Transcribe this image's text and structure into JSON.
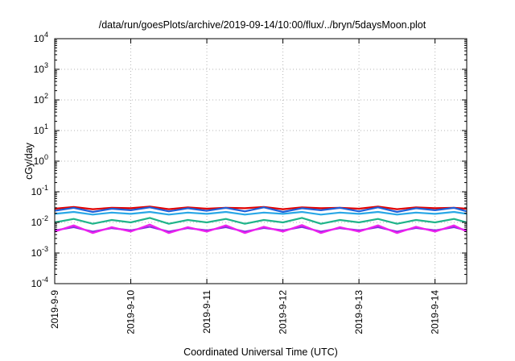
{
  "chart_data": {
    "type": "line",
    "title": "/data/run/goesPlots/archive/2019-09-14/10:00/flux/../bryn/5daysMoon.plot",
    "xlabel": "Coordinated Universal Time (UTC)",
    "ylabel": "cGy/day",
    "yscale": "log",
    "ylim": [
      0.0001,
      10000
    ],
    "xlim": [
      "2019-09-09T00:00",
      "2019-09-14T10:00"
    ],
    "grid": true,
    "legend": "none",
    "y_ticks": [
      {
        "base": "10",
        "exp": "-4"
      },
      {
        "base": "10",
        "exp": "-3"
      },
      {
        "base": "10",
        "exp": "-2"
      },
      {
        "base": "10",
        "exp": "-1"
      },
      {
        "base": "10",
        "exp": "0"
      },
      {
        "base": "10",
        "exp": "1"
      },
      {
        "base": "10",
        "exp": "2"
      },
      {
        "base": "10",
        "exp": "3"
      },
      {
        "base": "10",
        "exp": "4"
      }
    ],
    "x_ticks": [
      "2019-9-9",
      "2019-9-10",
      "2019-9-11",
      "2019-9-12",
      "2019-9-13",
      "2019-9-14"
    ],
    "x": [
      "2019-09-09T00:00",
      "2019-09-09T06:00",
      "2019-09-09T12:00",
      "2019-09-09T18:00",
      "2019-09-10T00:00",
      "2019-09-10T06:00",
      "2019-09-10T12:00",
      "2019-09-10T18:00",
      "2019-09-11T00:00",
      "2019-09-11T06:00",
      "2019-09-11T12:00",
      "2019-09-11T18:00",
      "2019-09-12T00:00",
      "2019-09-12T06:00",
      "2019-09-12T12:00",
      "2019-09-12T18:00",
      "2019-09-13T00:00",
      "2019-09-13T06:00",
      "2019-09-13T12:00",
      "2019-09-13T18:00",
      "2019-09-14T00:00",
      "2019-09-14T06:00",
      "2019-09-14T10:00"
    ],
    "series": [
      {
        "color": "#e00000",
        "values": [
          0.028,
          0.032,
          0.027,
          0.03,
          0.029,
          0.033,
          0.027,
          0.031,
          0.028,
          0.03,
          0.029,
          0.032,
          0.027,
          0.031,
          0.029,
          0.03,
          0.028,
          0.033,
          0.027,
          0.031,
          0.029,
          0.03,
          0.028
        ]
      },
      {
        "color": "#1f5fd8",
        "values": [
          0.024,
          0.03,
          0.022,
          0.028,
          0.025,
          0.031,
          0.023,
          0.029,
          0.024,
          0.03,
          0.023,
          0.031,
          0.022,
          0.029,
          0.025,
          0.03,
          0.023,
          0.031,
          0.022,
          0.029,
          0.025,
          0.03,
          0.023
        ]
      },
      {
        "color": "#2aa7e6",
        "values": [
          0.019,
          0.022,
          0.018,
          0.021,
          0.019,
          0.022,
          0.018,
          0.021,
          0.019,
          0.022,
          0.018,
          0.021,
          0.019,
          0.022,
          0.018,
          0.021,
          0.019,
          0.022,
          0.018,
          0.021,
          0.019,
          0.022,
          0.019
        ]
      },
      {
        "color": "#20b48a",
        "values": [
          0.01,
          0.013,
          0.009,
          0.012,
          0.01,
          0.014,
          0.009,
          0.012,
          0.01,
          0.013,
          0.009,
          0.012,
          0.01,
          0.014,
          0.009,
          0.012,
          0.01,
          0.013,
          0.009,
          0.012,
          0.01,
          0.013,
          0.01
        ]
      },
      {
        "color": "#8a2be2",
        "values": [
          0.0055,
          0.007,
          0.005,
          0.0065,
          0.0055,
          0.0072,
          0.005,
          0.0065,
          0.0055,
          0.007,
          0.005,
          0.0066,
          0.0055,
          0.0071,
          0.005,
          0.0065,
          0.0055,
          0.007,
          0.005,
          0.0066,
          0.0055,
          0.007,
          0.0055
        ]
      },
      {
        "color": "#ee22ee",
        "values": [
          0.005,
          0.008,
          0.0045,
          0.007,
          0.005,
          0.0085,
          0.0045,
          0.007,
          0.005,
          0.008,
          0.0045,
          0.0072,
          0.005,
          0.0082,
          0.0045,
          0.007,
          0.005,
          0.008,
          0.0045,
          0.0072,
          0.005,
          0.008,
          0.005
        ]
      }
    ]
  }
}
